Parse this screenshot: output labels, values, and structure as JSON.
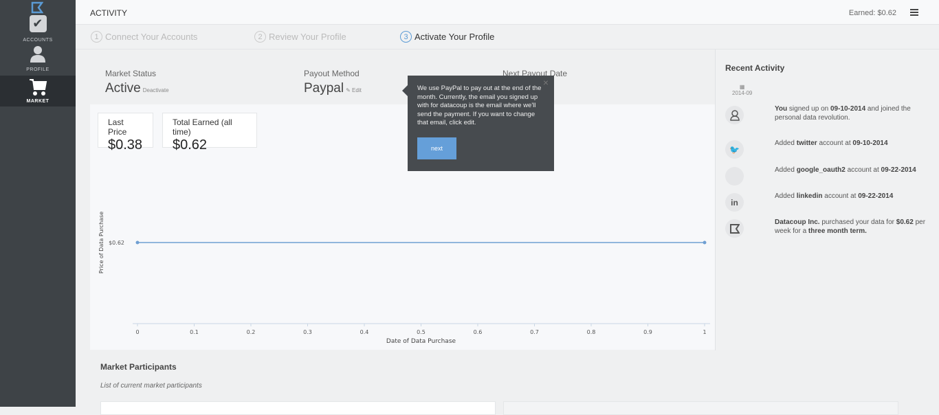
{
  "sidebar": {
    "items": [
      {
        "label": "ACCOUNTS",
        "icon": "checkbox-icon"
      },
      {
        "label": "PROFILE",
        "icon": "user-icon"
      },
      {
        "label": "MARKET",
        "icon": "cart-icon",
        "active": true
      }
    ]
  },
  "header": {
    "title": "ACTIVITY",
    "earned": "Earned: $0.62"
  },
  "steps": [
    {
      "num": "1",
      "label": "Connect Your Accounts"
    },
    {
      "num": "2",
      "label": "Review Your Profile"
    },
    {
      "num": "3",
      "label": "Activate Your Profile"
    }
  ],
  "summary": {
    "market_status_label": "Market Status",
    "market_status": "Active",
    "deactivate": "Deactivate",
    "payout_label": "Payout Method",
    "payout": "Paypal",
    "edit": "Edit",
    "next_payout_label": "Next Payout Date"
  },
  "cards": {
    "last_price_label": "Last Price",
    "last_price": "$0.38",
    "total_label": "Total Earned (all time)",
    "total": "$0.62"
  },
  "tooltip": {
    "text": "We use PayPal to pay out at the end of the month. Currently, the email you signed up with for datacoup is the email where we'll send the payment. If you want to change that email, click edit.",
    "button": "next",
    "close": "×"
  },
  "chart_data": {
    "type": "line",
    "xlabel": "Date of Data Purchase",
    "ylabel": "Price of Data Purchase",
    "x_ticks": [
      "0",
      "0.1",
      "0.2",
      "0.3",
      "0.4",
      "0.5",
      "0.6",
      "0.7",
      "0.8",
      "0.9",
      "1"
    ],
    "y_ticks": [
      "$0.62"
    ],
    "xlim": [
      0,
      1
    ],
    "series": [
      {
        "x": [
          0,
          1
        ],
        "y": [
          0.62,
          0.62
        ]
      }
    ],
    "color": "#6f9fd2"
  },
  "recent": {
    "title": "Recent Activity",
    "month": "2014-09",
    "items": [
      {
        "icon": "user-icon",
        "glyph": "",
        "html": [
          [
            "b",
            "You"
          ],
          [
            "t",
            " signed up on "
          ],
          [
            "b",
            "09-10-2014"
          ],
          [
            "t",
            " and joined the personal data revolution."
          ]
        ]
      },
      {
        "icon": "twitter-icon",
        "glyph": "🐦",
        "html": [
          [
            "t",
            "Added "
          ],
          [
            "b",
            "twitter"
          ],
          [
            "t",
            " account at "
          ],
          [
            "b",
            "09-10-2014"
          ]
        ]
      },
      {
        "icon": "google-icon",
        "glyph": "",
        "html": [
          [
            "t",
            "Added "
          ],
          [
            "b",
            "google_oauth2"
          ],
          [
            "t",
            " account at "
          ],
          [
            "b",
            "09-22-2014"
          ]
        ]
      },
      {
        "icon": "linkedin-icon",
        "glyph": "in",
        "html": [
          [
            "t",
            "Added "
          ],
          [
            "b",
            "linkedin"
          ],
          [
            "t",
            " account at "
          ],
          [
            "b",
            "09-22-2014"
          ]
        ]
      },
      {
        "icon": "datacoup-icon",
        "glyph": "",
        "html": [
          [
            "b",
            "Datacoup Inc."
          ],
          [
            "t",
            " purchased your data for "
          ],
          [
            "b",
            "$0.62"
          ],
          [
            "t",
            " per week for a "
          ],
          [
            "b",
            "three month term."
          ]
        ]
      }
    ]
  },
  "participants": {
    "title": "Market Participants",
    "subtitle": "List of current market participants"
  }
}
